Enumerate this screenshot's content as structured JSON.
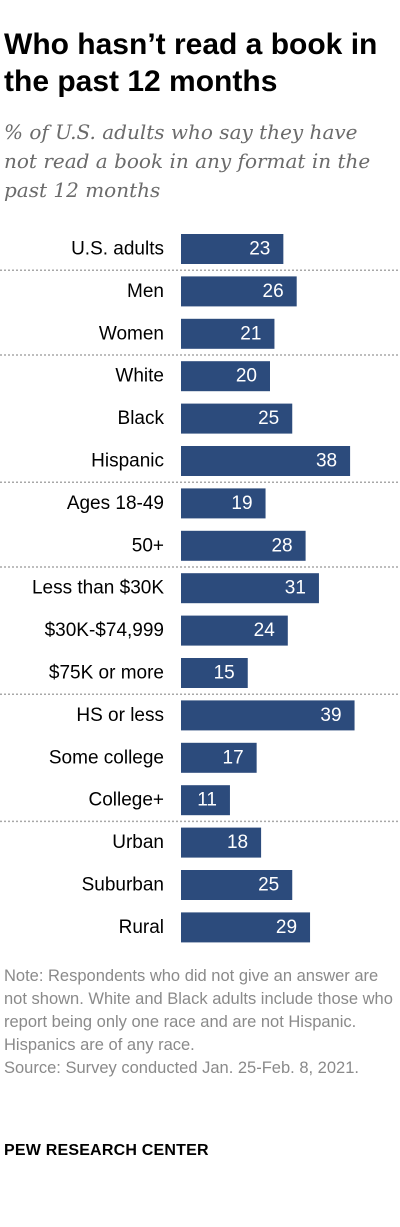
{
  "header": {
    "title": "Who hasn’t read a book in the past 12 months",
    "subtitle": "% of U.S. adults who say they have not read a book in any format in the past 12 months"
  },
  "chart_data": {
    "type": "bar",
    "orientation": "horizontal",
    "categories": [
      "U.S. adults",
      "Men",
      "Women",
      "White",
      "Black",
      "Hispanic",
      "Ages 18-49",
      "50+",
      "Less than $30K",
      "$30K-$74,999",
      "$75K or more",
      "HS or less",
      "Some college",
      "College+",
      "Urban",
      "Suburban",
      "Rural"
    ],
    "values": [
      23,
      26,
      21,
      20,
      25,
      38,
      19,
      28,
      31,
      24,
      15,
      39,
      17,
      11,
      18,
      25,
      29
    ],
    "groups": [
      [
        "U.S. adults"
      ],
      [
        "Men",
        "Women"
      ],
      [
        "White",
        "Black",
        "Hispanic"
      ],
      [
        "Ages 18-49",
        "50+"
      ],
      [
        "Less than $30K",
        "$30K-$74,999",
        "$75K or more"
      ],
      [
        "HS or less",
        "Some college",
        "College+"
      ],
      [
        "Urban",
        "Suburban",
        "Rural"
      ]
    ],
    "bar_color": "#2c4b7c",
    "separator_color": "#a8a8a8",
    "data_labels": true,
    "grid": false
  },
  "notes": {
    "note": "Note: Respondents who did not give an answer are not shown. White and Black adults include those who report being only one race and are not Hispanic. Hispanics are of any race.",
    "source": "Source: Survey conducted Jan. 25-Feb. 8, 2021."
  },
  "footer": {
    "brand": "PEW RESEARCH CENTER"
  }
}
